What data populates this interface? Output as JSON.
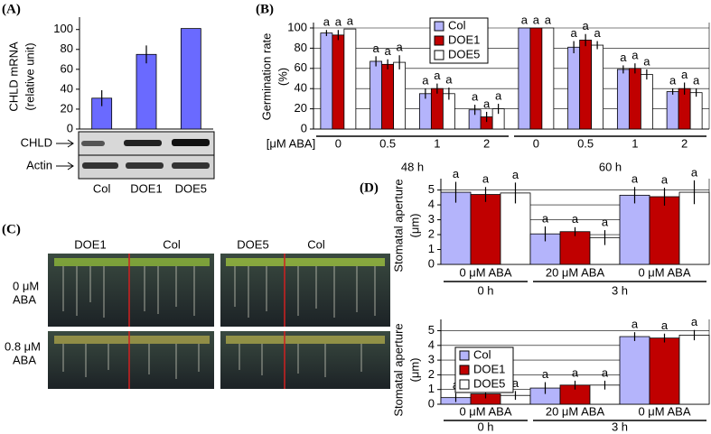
{
  "panel_labels": [
    "(A)",
    "(B)",
    "(C)",
    "(D)"
  ],
  "chart_data": [
    {
      "type": "bar",
      "y_label": [
        "CHLD mRNA",
        "(relative unit)"
      ],
      "categories": [
        "Col",
        "DOE1",
        "DOE5"
      ],
      "values": [
        31,
        75,
        101
      ],
      "errors": [
        8,
        9,
        0
      ],
      "color": "#6a6aff",
      "ylim": [
        0,
        107
      ],
      "yticks": [
        0,
        20,
        40,
        60,
        80,
        100
      ],
      "grid": false
    },
    {
      "type": "grouped_bar",
      "y_label": [
        "Germination rate",
        "(%)"
      ],
      "x_label": "[μM ABA]",
      "categories": [
        "0",
        "0.5",
        "1",
        "2",
        "0",
        "0.5",
        "1",
        "2"
      ],
      "groups": [
        "48 h",
        "60 h"
      ],
      "series": [
        {
          "name": "Col",
          "color": "#b4b4fb",
          "values": [
            95,
            67,
            35,
            19,
            100,
            81,
            59,
            37
          ],
          "errors": [
            3,
            5,
            5,
            5,
            0,
            6,
            4,
            3
          ],
          "letters": [
            "a",
            "a",
            "a",
            "a",
            "a",
            "a",
            "a",
            "a"
          ]
        },
        {
          "name": "DOE1",
          "color": "#c00000",
          "values": [
            93,
            64,
            40,
            12,
            100,
            88,
            60,
            40
          ],
          "errors": [
            5,
            5,
            5,
            5,
            0,
            6,
            5,
            6
          ],
          "letters": [
            "a",
            "a",
            "a",
            "a",
            "a",
            "a",
            "a",
            "a"
          ]
        },
        {
          "name": "DOE5",
          "color": "#ffffff",
          "values": [
            99,
            66,
            35,
            20,
            100,
            83,
            54,
            36
          ],
          "errors": [
            0,
            7,
            6,
            5,
            0,
            4,
            5,
            4
          ],
          "letters": [
            "a",
            "a",
            "a",
            "a",
            "a",
            "a",
            "a",
            "a"
          ]
        }
      ],
      "ylim": [
        0,
        100
      ],
      "yticks": [
        0,
        20,
        40,
        60,
        80,
        100
      ],
      "grid": true,
      "legend": "top"
    },
    {
      "type": "grouped_bar",
      "y_label": [
        "Stomatal aperture",
        "(μm)"
      ],
      "categories": [
        "0 μM ABA",
        "20 μM ABA",
        "0 μM ABA"
      ],
      "groups": [
        "0 h",
        "3 h"
      ],
      "series": [
        {
          "name": "Col",
          "color": "#b4b4fb",
          "values": [
            4.85,
            2.05,
            4.65
          ],
          "errors": [
            0.7,
            0.5,
            0.55
          ],
          "letters": [
            "a",
            "a",
            "a"
          ]
        },
        {
          "name": "DOE1",
          "color": "#c00000",
          "values": [
            4.7,
            2.2,
            4.55
          ],
          "errors": [
            0.5,
            0.3,
            0.6
          ],
          "letters": [
            "a",
            "a",
            "a"
          ]
        },
        {
          "name": "DOE5",
          "color": "#ffffff",
          "values": [
            4.8,
            1.8,
            4.85
          ],
          "errors": [
            0.7,
            0.5,
            0.8
          ],
          "letters": [
            "a",
            "a",
            "a"
          ]
        }
      ],
      "ylim": [
        0,
        5.4
      ],
      "yticks": [
        0,
        1,
        2,
        3,
        4,
        5
      ],
      "grid": true
    },
    {
      "type": "grouped_bar",
      "y_label": [
        "Stomatal aperture",
        "(μm)"
      ],
      "categories": [
        "0 μM ABA",
        "20 μM ABA",
        "0 μM ABA"
      ],
      "groups": [
        "0 h",
        "3 h"
      ],
      "series": [
        {
          "name": "Col",
          "color": "#b4b4fb",
          "values": [
            0.45,
            1.1,
            4.6
          ],
          "errors": [
            0.3,
            0.4,
            0.3
          ],
          "letters": [
            "a",
            "a",
            "a"
          ]
        },
        {
          "name": "DOE1",
          "color": "#c00000",
          "values": [
            0.7,
            1.3,
            4.5
          ],
          "errors": [
            0.3,
            0.3,
            0.3
          ],
          "letters": [
            "a",
            "a",
            "a"
          ]
        },
        {
          "name": "DOE5",
          "color": "#ffffff",
          "values": [
            0.6,
            1.3,
            4.7
          ],
          "errors": [
            0.3,
            0.3,
            0.35
          ],
          "letters": [
            "a",
            "a",
            "a"
          ]
        }
      ],
      "ylim": [
        0,
        5.4
      ],
      "yticks": [
        0,
        1,
        2,
        3,
        4,
        5
      ],
      "grid": true,
      "legend": "upper left"
    }
  ],
  "blot": {
    "row_labels": [
      "CHLD",
      "Actin"
    ]
  },
  "photo": {
    "column_labels": [
      "DOE1",
      "Col",
      "DOE5",
      "Col"
    ],
    "row_labels": [
      [
        "0 μM",
        "ABA"
      ],
      [
        "0.8 μM",
        "ABA"
      ]
    ]
  }
}
